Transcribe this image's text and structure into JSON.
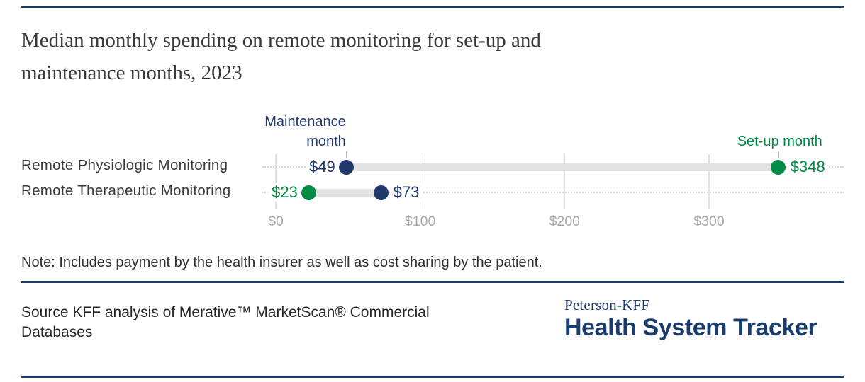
{
  "title_lines": [
    "Median monthly spending on remote monitoring for set-up and",
    "maintenance months, 2023"
  ],
  "note": "Note: Includes payment by the health insurer as well as cost sharing by the patient.",
  "source_lines": [
    "Source KFF analysis of Merative™ MarketScan® Commercial",
    "Databases"
  ],
  "logo": {
    "line1_pre": "Peterson",
    "line1_hyphen": "-",
    "line1_post": "KFF",
    "line2": "Health System Tracker"
  },
  "colors": {
    "navy": "#21386B",
    "green": "#008C46",
    "rule_navy": "#1d3c6d",
    "track_gray": "#e3e3e3",
    "grid_gray": "#e1e1e1",
    "axis_text": "#a8a8a8"
  },
  "chart_data": {
    "type": "dumbbell",
    "title": "Median monthly spending on remote monitoring for set-up and maintenance months, 2023",
    "categories": [
      "Remote Physiologic Monitoring",
      "Remote Therapeutic Monitoring"
    ],
    "series": [
      {
        "name": "Maintenance month",
        "key": "maintenance",
        "color": "#21386B",
        "values": [
          49,
          73
        ],
        "labels": [
          "$49",
          "$73"
        ]
      },
      {
        "name": "Set-up month",
        "key": "setup",
        "color": "#008C46",
        "values": [
          348,
          23
        ],
        "labels": [
          "$348",
          "$23"
        ]
      }
    ],
    "annotations": [
      {
        "text": "Maintenance month",
        "series_index": 0,
        "category_index": 0
      },
      {
        "text": "Set-up month",
        "series_index": 1,
        "category_index": 0
      }
    ],
    "x_ticks": [
      {
        "label": "$0",
        "value": 0
      },
      {
        "label": "$100",
        "value": 100
      },
      {
        "label": "$200",
        "value": 200
      },
      {
        "label": "$300",
        "value": 300
      }
    ],
    "xlim": [
      0,
      393
    ],
    "grid": true,
    "legend_position": "annotations-above-first-row"
  }
}
